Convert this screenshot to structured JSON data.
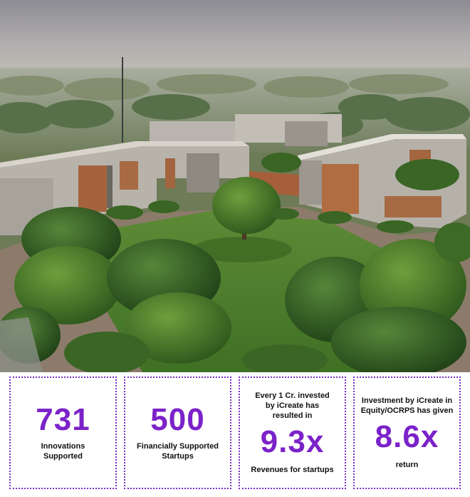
{
  "hero": {
    "image_icon": "campus-aerial-photo"
  },
  "stats": [
    {
      "value": "731",
      "label": "Innovations Supported"
    },
    {
      "value": "500",
      "label": "Financially Supported Startups"
    },
    {
      "pre_label": "Every 1 Cr. invested by iCreate has resulted in",
      "value": "9.3x",
      "label": "Revenues for startups"
    },
    {
      "pre_label": "Investment by iCreate in Equity/OCRPS has given",
      "value": "8.6x",
      "label": "return"
    }
  ],
  "colors": {
    "accent": "#7b22c9",
    "border": "#7a2ec5"
  }
}
